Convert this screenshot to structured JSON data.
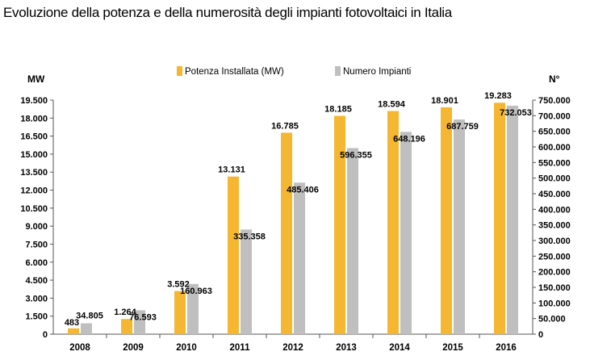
{
  "chart_data": {
    "type": "bar",
    "title": "Evoluzione della potenza e della numerosità degli impianti fotovoltaici in Italia",
    "left_axis_unit": "MW",
    "right_axis_unit": "N°",
    "categories": [
      "2008",
      "2009",
      "2010",
      "2011",
      "2012",
      "2013",
      "2014",
      "2015",
      "2016"
    ],
    "series": [
      {
        "name": "Potenza Installata (MW)",
        "axis": "left",
        "color": "#F5B731",
        "values": [
          483,
          1264,
          3592,
          13131,
          16785,
          18185,
          18594,
          18901,
          19283
        ],
        "labels": [
          "483",
          "1.264",
          "3.592",
          "13.131",
          "16.785",
          "18.185",
          "18.594",
          "18.901",
          "19.283"
        ]
      },
      {
        "name": "Numero Impianti",
        "axis": "right",
        "color": "#BFBFBF",
        "values": [
          34805,
          76593,
          160963,
          335358,
          485406,
          596355,
          648196,
          687759,
          732053
        ],
        "labels": [
          "34.805",
          "76.593",
          "160.963",
          "335.358",
          "485.406",
          "596.355",
          "648.196",
          "687.759",
          "732.053"
        ]
      }
    ],
    "left_axis": {
      "ylim": [
        0,
        19500
      ],
      "ticks": [
        0,
        1500,
        3000,
        4500,
        6000,
        7500,
        9000,
        10500,
        12000,
        13500,
        15000,
        16500,
        18000,
        19500
      ],
      "tick_labels": [
        "0",
        "1.500",
        "3.000",
        "4.500",
        "6.000",
        "7.500",
        "9.000",
        "10.500",
        "12.000",
        "13.500",
        "15.000",
        "16.500",
        "18.000",
        "19.500"
      ]
    },
    "right_axis": {
      "ylim": [
        0,
        750000
      ],
      "ticks": [
        0,
        50000,
        100000,
        150000,
        200000,
        250000,
        300000,
        350000,
        400000,
        450000,
        500000,
        550000,
        600000,
        650000,
        700000,
        750000
      ],
      "tick_labels": [
        "0",
        "50.000",
        "100.000",
        "150.000",
        "200.000",
        "250.000",
        "300.000",
        "350.000",
        "400.000",
        "450.000",
        "500.000",
        "550.000",
        "600.000",
        "650.000",
        "700.000",
        "750.000"
      ]
    },
    "legend_position": "top-center",
    "grid": false
  }
}
